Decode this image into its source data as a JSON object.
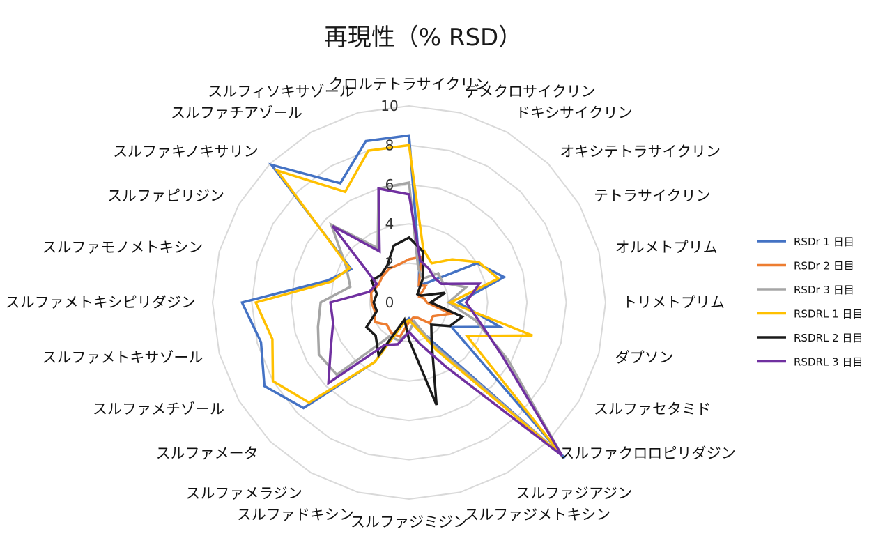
{
  "chart_data": {
    "type": "radar",
    "title": "再現性（% RSD）",
    "categories": [
      "クロルテトラサイクリン",
      "デメクロサイクリン",
      "ドキシサイクリン",
      "オキシテトラサイクリン",
      "テトラサイクリン",
      "オルメトプリム",
      "トリメトプリム",
      "ダプソン",
      "スルファセタミド",
      "スルファクロロピリダジン",
      "スルファジアジン",
      "スルファジメトキシン",
      "スルファジミジン",
      "スルファドキシン",
      "スルファメラジン",
      "スルファメータ",
      "スルファメチゾール",
      "スルファメトキサゾール",
      "スルファメトキシピリダジン",
      "スルファモノメトキシン",
      "スルファピリジン",
      "スルファキノキサリン",
      "スルファチアゾール",
      "スルフィソキサゾール"
    ],
    "r_ticks": [
      0,
      2,
      4,
      6,
      8,
      10
    ],
    "rlim": [
      0,
      10
    ],
    "grid": true,
    "legend_position": "right",
    "series": [
      {
        "name": "RSDr 1 日目",
        "color": "#4472C4",
        "values": [
          8.5,
          2.0,
          1.0,
          1.5,
          4.0,
          5.0,
          2.5,
          4.8,
          2.5,
          11.2,
          2.2,
          1.2,
          0.8,
          1.1,
          3.5,
          7.6,
          8.5,
          7.8,
          8.5,
          4.3,
          3.4,
          9.9,
          7.0,
          8.5
        ]
      },
      {
        "name": "RSDr 2 日目",
        "color": "#ED7D31",
        "values": [
          2.2,
          2.4,
          1.0,
          1.2,
          0.6,
          0.8,
          0.9,
          2.2,
          1.4,
          1.5,
          0.9,
          0.8,
          1.0,
          1.8,
          1.8,
          1.6,
          2.0,
          1.8,
          1.9,
          2.0,
          1.8,
          1.9,
          2.0,
          2.0
        ]
      },
      {
        "name": "RSDr 3 日目",
        "color": "#A5A5A5",
        "values": [
          6.1,
          1.8,
          1.4,
          2.1,
          2.0,
          3.0,
          2.0,
          3.5,
          5.8,
          11.0,
          2.5,
          1.0,
          1.5,
          2.0,
          2.0,
          5.2,
          5.3,
          4.8,
          4.5,
          3.1,
          3.7,
          5.6,
          3.2,
          6.0
        ]
      },
      {
        "name": "RSDRL 1 日目",
        "color": "#FFC000",
        "values": [
          8.0,
          2.8,
          2.3,
          3.1,
          4.1,
          4.7,
          2.1,
          6.5,
          3.4,
          11.0,
          2.8,
          1.3,
          0.9,
          1.1,
          3.5,
          7.2,
          8.0,
          7.2,
          7.8,
          4.1,
          3.5,
          9.5,
          6.5,
          8.0
        ]
      },
      {
        "name": "RSDRL 2 日目",
        "color": "#1A1A1A",
        "values": [
          3.3,
          2.7,
          1.4,
          0.6,
          0.7,
          1.9,
          1.1,
          2.8,
          2.4,
          1.6,
          2.3,
          5.4,
          1.9,
          0.9,
          3.1,
          2.4,
          2.5,
          1.7,
          1.8,
          1.7,
          2.2,
          2.0,
          2.2,
          3.0
        ]
      },
      {
        "name": "RSDRL 3 日目",
        "color": "#7030A0",
        "values": [
          5.5,
          2.2,
          2.0,
          1.8,
          1.9,
          3.7,
          2.9,
          3.7,
          5.5,
          11.0,
          3.8,
          2.2,
          1.5,
          2.2,
          2.5,
          5.8,
          4.6,
          4.0,
          4.0,
          2.1,
          1.9,
          5.5,
          3.0,
          6.0
        ]
      }
    ]
  }
}
